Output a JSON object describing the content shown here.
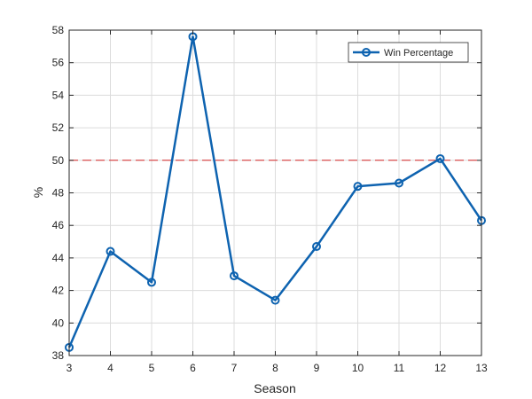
{
  "chart_data": {
    "type": "line",
    "xlabel": "Season",
    "ylabel": "%",
    "xlim": [
      3,
      13
    ],
    "ylim": [
      38,
      58
    ],
    "x_ticks": [
      3,
      4,
      5,
      6,
      7,
      8,
      9,
      10,
      11,
      12,
      13
    ],
    "y_ticks": [
      38,
      40,
      42,
      44,
      46,
      48,
      50,
      52,
      54,
      56,
      58
    ],
    "grid": true,
    "legend_position": "top-right",
    "series": [
      {
        "name": "Win Percentage",
        "color": "#0e63b0",
        "marker": "circle",
        "x": [
          3,
          4,
          5,
          6,
          7,
          8,
          9,
          10,
          11,
          12,
          13
        ],
        "values": [
          38.5,
          44.4,
          42.5,
          57.6,
          42.9,
          41.4,
          44.7,
          48.4,
          48.6,
          50.1,
          46.3
        ]
      }
    ],
    "reference_lines": [
      {
        "y": 50,
        "color": "#d62728",
        "style": "dashed"
      }
    ]
  }
}
